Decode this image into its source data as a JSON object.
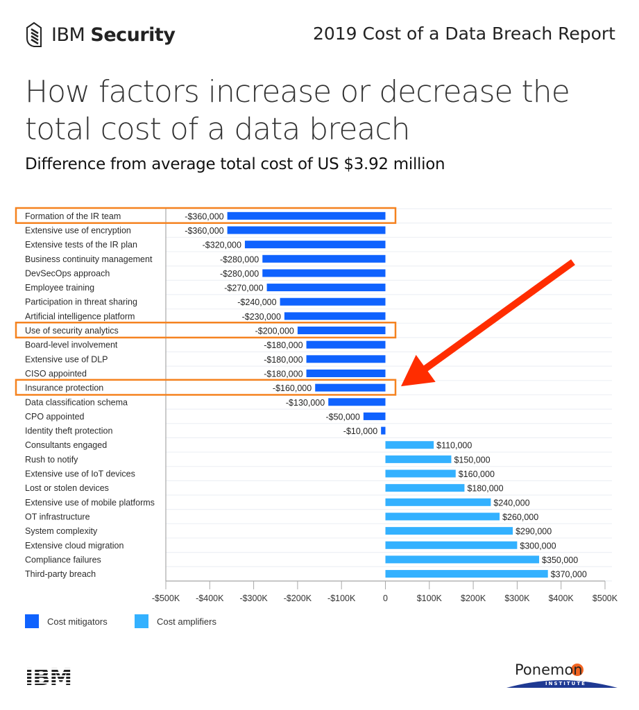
{
  "header": {
    "brand_light": "IBM",
    "brand_bold": "Security",
    "report_title": "2019 Cost of a Data Breach Report"
  },
  "title_line1": "How factors increase or decrease the",
  "title_line2": "total cost of a data breach",
  "subtitle": "Difference from average total cost of US $3.92 million",
  "colors": {
    "mitigator": "#0f62fe",
    "amplifier": "#33b1ff",
    "highlight_box": "#f5821f",
    "arrow": "#ff2d00",
    "gridline": "#eef0f5",
    "axis": "#a8a8a8"
  },
  "footer": {
    "left_logo": "IBM",
    "right_logo": "Ponemon",
    "right_logo_sub": "INSTITUTE"
  },
  "chart_data": {
    "type": "bar",
    "orientation": "horizontal",
    "title": "How factors increase or decrease the total cost of a data breach",
    "subtitle": "Difference from average total cost of US $3.92 million",
    "xlabel": "",
    "ylabel": "",
    "xlim": [
      -500000,
      500000
    ],
    "x_ticks": [
      -500000,
      -400000,
      -300000,
      -200000,
      -100000,
      0,
      100000,
      200000,
      300000,
      400000,
      500000
    ],
    "x_tick_labels": [
      "-$500K",
      "-$400K",
      "-$300K",
      "-$200K",
      "-$100K",
      "0",
      "$100K",
      "$200K",
      "$300K",
      "$400K",
      "$500K"
    ],
    "grid": true,
    "legend_position": "bottom-left",
    "legend": [
      {
        "name": "Cost mitigators",
        "color": "#0f62fe"
      },
      {
        "name": "Cost amplifiers",
        "color": "#33b1ff"
      }
    ],
    "categories": [
      "Formation of the IR team",
      "Extensive use of encryption",
      "Extensive tests of the IR plan",
      "Business continuity management",
      "DevSecOps approach",
      "Employee training",
      "Participation in threat sharing",
      "Artificial intelligence platform",
      "Use of security analytics",
      "Board-level involvement",
      "Extensive use of DLP",
      "CISO appointed",
      "Insurance protection",
      "Data classification schema",
      "CPO appointed",
      "Identity theft protection",
      "Consultants engaged",
      "Rush to notify",
      "Extensive use of IoT devices",
      "Lost or stolen devices",
      "Extensive use of mobile platforms",
      "OT infrastructure",
      "System complexity",
      "Extensive cloud migration",
      "Compliance failures",
      "Third-party breach"
    ],
    "values": [
      -360000,
      -360000,
      -320000,
      -280000,
      -280000,
      -270000,
      -240000,
      -230000,
      -200000,
      -180000,
      -180000,
      -180000,
      -160000,
      -130000,
      -50000,
      -10000,
      110000,
      150000,
      160000,
      180000,
      240000,
      260000,
      290000,
      300000,
      350000,
      370000
    ],
    "value_labels": [
      "-$360,000",
      "-$360,000",
      "-$320,000",
      "-$280,000",
      "-$280,000",
      "-$270,000",
      "-$240,000",
      "-$230,000",
      "-$200,000",
      "-$180,000",
      "-$180,000",
      "-$180,000",
      "-$160,000",
      "-$130,000",
      "-$50,000",
      "-$10,000",
      "$110,000",
      "$150,000",
      "$160,000",
      "$180,000",
      "$240,000",
      "$260,000",
      "$290,000",
      "$300,000",
      "$350,000",
      "$370,000"
    ],
    "highlighted_categories": [
      "Formation of the IR team",
      "Use of security analytics",
      "Insurance protection"
    ],
    "annotations": [
      {
        "type": "arrow",
        "points_to": "Insurance protection"
      }
    ]
  }
}
